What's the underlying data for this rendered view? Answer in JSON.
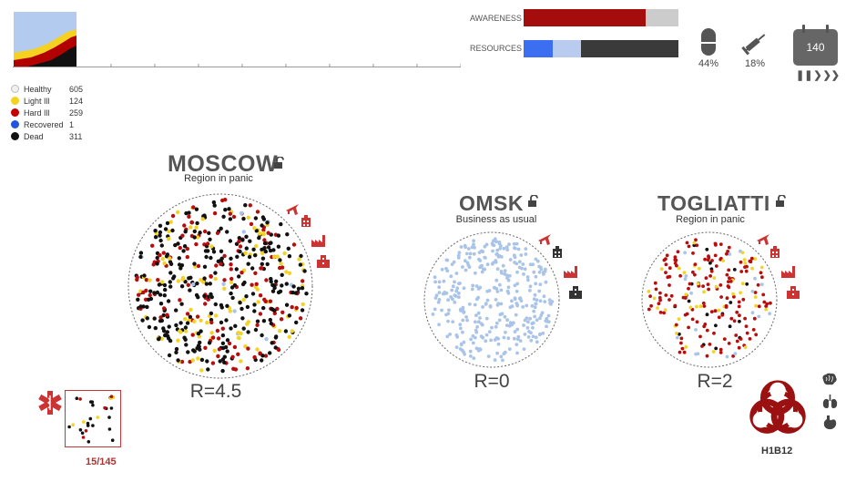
{
  "chart_data": {
    "type": "area",
    "series": [
      {
        "name": "Healthy",
        "color": "#b3cbef"
      },
      {
        "name": "Light Ill",
        "color": "#f5d21f"
      },
      {
        "name": "Hard Ill",
        "color": "#b30000"
      },
      {
        "name": "Dead",
        "color": "#111111"
      }
    ],
    "grid": false
  },
  "legend": [
    {
      "label": "Healthy",
      "count": "605",
      "color": "#f0f0f0"
    },
    {
      "label": "Light Ill",
      "count": "124",
      "color": "#f5d21f"
    },
    {
      "label": "Hard Ill",
      "count": "259",
      "color": "#c40000"
    },
    {
      "label": "Recovered",
      "count": "1",
      "color": "#2255dd"
    },
    {
      "label": "Dead",
      "count": "311",
      "color": "#111111"
    }
  ],
  "meters": {
    "awareness": {
      "label": "AWARENESS",
      "level": 0.79,
      "fill_color": "#a50c0c",
      "track_color": "#cccccc"
    },
    "resources": {
      "label": "RESOURCES",
      "segments": [
        {
          "fraction": 0.19,
          "color": "#3b6ef0"
        },
        {
          "fraction": 0.18,
          "color": "#b9cbef"
        },
        {
          "fraction": 0.63,
          "color": "#3a3a3a"
        }
      ]
    }
  },
  "stats": {
    "medicine": {
      "icon": "pill-icon",
      "value": "44%"
    },
    "vaccine": {
      "icon": "syringe-icon",
      "value": "18%"
    }
  },
  "calendar": {
    "icon": "calendar-icon",
    "day": "140"
  },
  "speed_controls": {
    "pause": "❚❚",
    "play": "❯",
    "fast": "❯❯"
  },
  "cities": [
    {
      "name": "MOSCOW",
      "status": "Region in panic",
      "status_color": "#8b1a1a",
      "r_value": "R=4.5",
      "dot_counts": {
        "black": 300,
        "red": 140,
        "yellow": 100,
        "blue": 10
      }
    },
    {
      "name": "OMSK",
      "status": "Business as usual",
      "status_color": "#555555",
      "r_value": "R=0",
      "dot_counts": {
        "blue": 350
      }
    },
    {
      "name": "TOGLIATTI",
      "status": "Region in panic",
      "status_color": "#8b1a1a",
      "r_value": "R=2",
      "dot_counts": {
        "red": 150,
        "yellow": 40,
        "black": 20,
        "blue": 20
      }
    }
  ],
  "staff": {
    "icon": "medical-star-icon",
    "count": "15/145"
  },
  "pathogen": {
    "icon": "biohazard-icon",
    "name": "H1B12",
    "organs": [
      "brain-icon",
      "lungs-icon",
      "stomach-icon"
    ]
  },
  "city_icons": [
    "plane-icon",
    "hospital-icon",
    "factory-icon",
    "building-icon"
  ],
  "colors": {
    "accent": "#c33333",
    "icon_gray": "#444444"
  }
}
